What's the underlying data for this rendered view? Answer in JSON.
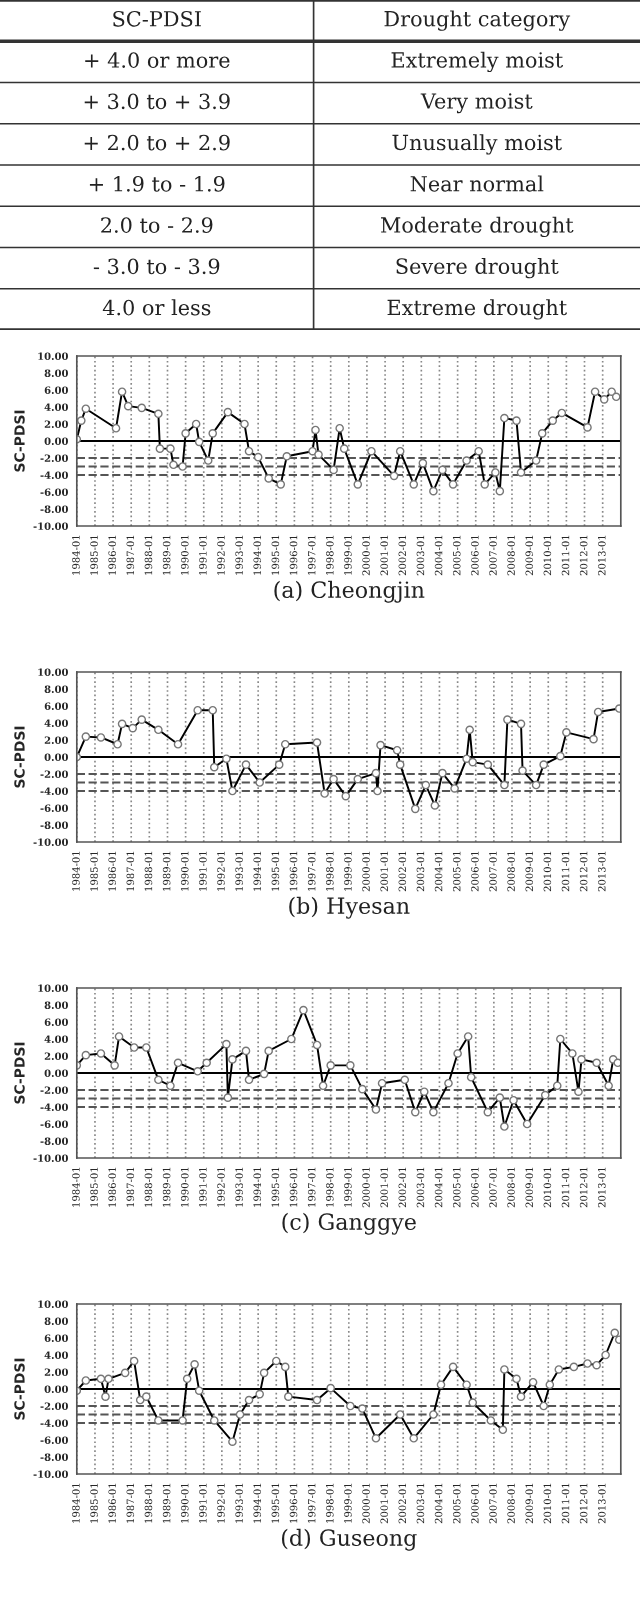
{
  "chart_data": [
    {
      "type": "other",
      "annotations": [
        "SC-PDSI",
        "Drought category",
        "+ 4.0 or more",
        "Extremely moist",
        "+ 3.0 to + 3.9",
        "Very moist",
        "+ 2.0 to + 2.9",
        "Unusually moist",
        "+ 1.9 to - 1.9",
        "Near normal",
        "2.0 to - 2.9",
        "Moderate drought",
        "- 3.0 to - 3.9",
        "Severe drought",
        "4.0 or less",
        "Extreme drought"
      ]
    },
    {
      "type": "line",
      "title": "(a) Cheongjin",
      "ylabel": "SC-PDSI",
      "marker": "circle",
      "grid": "x",
      "xlim": [
        "1984-01",
        "2014-01"
      ],
      "xticks": [
        "1984-01",
        "1985-01",
        "1986-01",
        "1987-01",
        "1988-01",
        "1989-01",
        "1990-01",
        "1991-01",
        "1992-01",
        "1993-01",
        "1994-01",
        "1995-01",
        "1996-01",
        "1997-01",
        "1998-01",
        "1999-01",
        "2000-01",
        "2001-01",
        "2002-01",
        "2003-01",
        "2004-01",
        "2005-01",
        "2006-01",
        "2007-01",
        "2008-01",
        "2009-01",
        "2010-01",
        "2011-01",
        "2012-01",
        "2013-01"
      ],
      "ylim": [
        -10,
        10
      ],
      "yticks": [
        {
          "value": -10,
          "label": "-10.00"
        },
        {
          "value": -8,
          "label": "-8.00"
        },
        {
          "value": -6,
          "label": "-6.00"
        },
        {
          "value": -4,
          "label": "-4.00"
        },
        {
          "value": -2,
          "label": "-2.00"
        },
        {
          "value": 0,
          "label": "0.00"
        },
        {
          "value": 2,
          "label": "2.00"
        },
        {
          "value": 4,
          "label": "4.00"
        },
        {
          "value": 6,
          "label": "6.00"
        },
        {
          "value": 8,
          "label": "8.00"
        },
        {
          "value": 10,
          "label": "10.00"
        }
      ],
      "ref_lines": [
        {
          "axis": "y",
          "value": 0,
          "color": "#000000",
          "line_style": "solid"
        },
        {
          "axis": "y",
          "value": -2,
          "color": "#555555",
          "line_style": "dashed"
        },
        {
          "axis": "y",
          "value": -3,
          "color": "#555555",
          "line_style": "dashed"
        },
        {
          "axis": "y",
          "value": -4,
          "color": "#555555",
          "line_style": "dashed"
        }
      ],
      "series": [
        {
          "color": "#000000",
          "x": [
            "1984-01",
            "1984-04",
            "1984-07",
            "1986-03",
            "1986-07",
            "1986-11",
            "1987-08",
            "1988-07",
            "1988-08",
            "1989-03",
            "1989-05",
            "1989-11",
            "1990-01",
            "1990-08",
            "1990-10",
            "1991-04",
            "1991-07",
            "1992-05",
            "1993-04",
            "1993-07",
            "1994-01",
            "1994-08",
            "1995-04",
            "1995-08",
            "1997-01",
            "1997-03",
            "1997-05",
            "1998-03",
            "1998-07",
            "1998-10",
            "1999-07",
            "2000-04",
            "2001-07",
            "2001-11",
            "2002-08",
            "2003-02",
            "2003-09",
            "2004-03",
            "2004-10",
            "2005-07",
            "2006-03",
            "2006-07",
            "2007-02",
            "2007-05",
            "2007-08",
            "2008-04",
            "2008-07",
            "2009-05",
            "2009-09",
            "2010-04",
            "2010-10",
            "2012-03",
            "2012-08",
            "2013-02",
            "2013-07",
            "2013-10"
          ],
          "values": [
            0.2,
            2.4,
            3.8,
            1.5,
            5.8,
            4.1,
            3.9,
            3.2,
            -0.9,
            -0.9,
            -2.8,
            -3.0,
            0.9,
            2.0,
            -0.1,
            -2.3,
            0.9,
            3.4,
            2.0,
            -1.2,
            -1.9,
            -4.4,
            -5.1,
            -1.8,
            -1.2,
            1.3,
            -1.6,
            -3.4,
            1.5,
            -0.9,
            -5.1,
            -1.2,
            -4.1,
            -1.2,
            -5.1,
            -2.6,
            -5.9,
            -3.4,
            -5.1,
            -2.3,
            -1.2,
            -5.1,
            -3.7,
            -5.9,
            2.7,
            2.4,
            -3.7,
            -2.3,
            0.9,
            2.4,
            3.3,
            1.6,
            5.8,
            4.9,
            5.8,
            5.2
          ]
        }
      ]
    },
    {
      "type": "line",
      "title": "(b) Hyesan",
      "ylabel": "SC-PDSI",
      "marker": "circle",
      "grid": "x",
      "xlim": [
        "1984-01",
        "2014-01"
      ],
      "xticks": [
        "1984-01",
        "1985-01",
        "1986-01",
        "1987-01",
        "1988-01",
        "1989-01",
        "1990-01",
        "1991-01",
        "1992-01",
        "1993-01",
        "1994-01",
        "1995-01",
        "1996-01",
        "1997-01",
        "1998-01",
        "1999-01",
        "2000-01",
        "2001-01",
        "2002-01",
        "2003-01",
        "2004-01",
        "2005-01",
        "2006-01",
        "2007-01",
        "2008-01",
        "2009-01",
        "2010-01",
        "2011-01",
        "2012-01",
        "2013-01"
      ],
      "ylim": [
        -10,
        10
      ],
      "yticks": [
        {
          "value": -10,
          "label": "-10.00"
        },
        {
          "value": -8,
          "label": "-8.00"
        },
        {
          "value": -6,
          "label": "-6.00"
        },
        {
          "value": -4,
          "label": "-4.00"
        },
        {
          "value": -2,
          "label": "-2.00"
        },
        {
          "value": 0,
          "label": "0.00"
        },
        {
          "value": 2,
          "label": "2.00"
        },
        {
          "value": 4,
          "label": "4.00"
        },
        {
          "value": 6,
          "label": "6.00"
        },
        {
          "value": 8,
          "label": "8.00"
        },
        {
          "value": 10,
          "label": "10.00"
        }
      ],
      "ref_lines": [
        {
          "axis": "y",
          "value": 0,
          "color": "#000000",
          "line_style": "solid"
        },
        {
          "axis": "y",
          "value": -2,
          "color": "#555555",
          "line_style": "dashed"
        },
        {
          "axis": "y",
          "value": -3,
          "color": "#555555",
          "line_style": "dashed"
        },
        {
          "axis": "y",
          "value": -4,
          "color": "#555555",
          "line_style": "dashed"
        }
      ],
      "series": [
        {
          "color": "#000000",
          "x": [
            "1984-01",
            "1984-07",
            "1985-05",
            "1986-04",
            "1986-07",
            "1987-02",
            "1987-08",
            "1988-07",
            "1989-08",
            "1990-09",
            "1991-07",
            "1991-08",
            "1992-04",
            "1992-08",
            "1993-05",
            "1994-02",
            "1995-03",
            "1995-07",
            "1997-04",
            "1997-09",
            "1998-03",
            "1998-11",
            "1999-07",
            "2000-07",
            "2000-08",
            "2000-10",
            "2001-09",
            "2001-11",
            "2002-09",
            "2003-04",
            "2003-10",
            "2004-03",
            "2004-11",
            "2005-07",
            "2005-09",
            "2005-11",
            "2006-09",
            "2007-08",
            "2007-10",
            "2008-07",
            "2008-08",
            "2009-05",
            "2009-10",
            "2010-09",
            "2011-01",
            "2012-07",
            "2012-10",
            "2013-12"
          ],
          "values": [
            0.0,
            2.4,
            2.3,
            1.5,
            3.9,
            3.4,
            4.4,
            3.2,
            1.5,
            5.5,
            5.5,
            -1.2,
            -0.2,
            -4.0,
            -0.9,
            -3.0,
            -0.9,
            1.5,
            1.7,
            -4.3,
            -2.6,
            -4.6,
            -2.6,
            -1.9,
            -4.0,
            1.4,
            0.8,
            -0.9,
            -6.1,
            -3.3,
            -5.7,
            -1.9,
            -3.7,
            -0.2,
            3.2,
            -0.6,
            -0.9,
            -3.3,
            4.4,
            3.9,
            -1.6,
            -3.3,
            -0.9,
            0.1,
            2.9,
            2.1,
            5.3,
            5.7
          ]
        }
      ]
    },
    {
      "type": "line",
      "title": "(c) Ganggye",
      "ylabel": "SC-PDSI",
      "marker": "circle",
      "grid": "x",
      "xlim": [
        "1984-01",
        "2014-01"
      ],
      "xticks": [
        "1984-01",
        "1985-01",
        "1986-01",
        "1987-01",
        "1988-01",
        "1989-01",
        "1990-01",
        "1991-01",
        "1992-01",
        "1993-01",
        "1994-01",
        "1995-01",
        "1996-01",
        "1997-01",
        "1998-01",
        "1999-01",
        "2000-01",
        "2001-01",
        "2002-01",
        "2003-01",
        "2004-01",
        "2005-01",
        "2006-01",
        "2007-01",
        "2008-01",
        "2009-01",
        "2010-01",
        "2011-01",
        "2012-01",
        "2013-01"
      ],
      "ylim": [
        -10,
        10
      ],
      "yticks": [
        {
          "value": -10,
          "label": "-10.00"
        },
        {
          "value": -8,
          "label": "-8.00"
        },
        {
          "value": -6,
          "label": "-6.00"
        },
        {
          "value": -4,
          "label": "-4.00"
        },
        {
          "value": -2,
          "label": "-2.00"
        },
        {
          "value": 0,
          "label": "0.00"
        },
        {
          "value": 2,
          "label": "2.00"
        },
        {
          "value": 4,
          "label": "4.00"
        },
        {
          "value": 6,
          "label": "6.00"
        },
        {
          "value": 8,
          "label": "8.00"
        },
        {
          "value": 10,
          "label": "10.00"
        }
      ],
      "ref_lines": [
        {
          "axis": "y",
          "value": 0,
          "color": "#000000",
          "line_style": "solid"
        },
        {
          "axis": "y",
          "value": -2,
          "color": "#555555",
          "line_style": "dashed"
        },
        {
          "axis": "y",
          "value": -3,
          "color": "#555555",
          "line_style": "dashed"
        },
        {
          "axis": "y",
          "value": -4,
          "color": "#555555",
          "line_style": "dashed"
        }
      ],
      "series": [
        {
          "color": "#000000",
          "x": [
            "1984-01",
            "1984-07",
            "1985-05",
            "1986-02",
            "1986-05",
            "1987-03",
            "1987-11",
            "1988-07",
            "1989-03",
            "1989-08",
            "1990-09",
            "1991-03",
            "1992-04",
            "1992-05",
            "1992-08",
            "1993-05",
            "1993-07",
            "1994-05",
            "1994-08",
            "1995-11",
            "1996-07",
            "1997-04",
            "1997-08",
            "1998-01",
            "1999-02",
            "1999-10",
            "2000-07",
            "2000-11",
            "2002-02",
            "2002-09",
            "2003-03",
            "2003-09",
            "2004-07",
            "2005-01",
            "2005-08",
            "2005-10",
            "2006-09",
            "2007-05",
            "2007-08",
            "2008-02",
            "2008-11",
            "2009-11",
            "2010-07",
            "2010-09",
            "2011-05",
            "2011-09",
            "2011-11",
            "2012-09",
            "2013-05",
            "2013-08",
            "2013-11"
          ],
          "values": [
            0.9,
            2.1,
            2.3,
            0.9,
            4.3,
            3.0,
            3.0,
            -0.8,
            -1.5,
            1.2,
            0.2,
            1.2,
            3.4,
            -2.9,
            1.6,
            2.6,
            -0.8,
            -0.1,
            2.6,
            4.0,
            7.4,
            3.3,
            -1.5,
            0.9,
            0.9,
            -1.9,
            -4.3,
            -1.2,
            -0.8,
            -4.6,
            -2.2,
            -4.6,
            -1.2,
            2.3,
            4.3,
            -0.5,
            -4.6,
            -2.9,
            -6.3,
            -3.2,
            -6.0,
            -2.6,
            -1.5,
            4.0,
            2.3,
            -2.2,
            1.6,
            1.2,
            -1.5,
            1.6,
            1.2
          ]
        }
      ]
    },
    {
      "type": "line",
      "title": "(d) Guseong",
      "ylabel": "SC-PDSI",
      "marker": "circle",
      "grid": "x",
      "xlim": [
        "1984-01",
        "2014-01"
      ],
      "xticks": [
        "1984-01",
        "1985-01",
        "1986-01",
        "1987-01",
        "1988-01",
        "1989-01",
        "1990-01",
        "1991-01",
        "1992-01",
        "1993-01",
        "1994-01",
        "1995-01",
        "1996-01",
        "1997-01",
        "1998-01",
        "1999-01",
        "2000-01",
        "2001-01",
        "2002-01",
        "2003-01",
        "2004-01",
        "2005-01",
        "2006-01",
        "2007-01",
        "2008-01",
        "2009-01",
        "2010-01",
        "2011-01",
        "2012-01",
        "2013-01"
      ],
      "ylim": [
        -10,
        10
      ],
      "yticks": [
        {
          "value": -10,
          "label": "-10.00"
        },
        {
          "value": -8,
          "label": "-8.00"
        },
        {
          "value": -6,
          "label": "-6.00"
        },
        {
          "value": -4,
          "label": "-4.00"
        },
        {
          "value": -2,
          "label": "-2.00"
        },
        {
          "value": 0,
          "label": "0.00"
        },
        {
          "value": 2,
          "label": "2.00"
        },
        {
          "value": 4,
          "label": "4.00"
        },
        {
          "value": 6,
          "label": "6.00"
        },
        {
          "value": 8,
          "label": "8.00"
        },
        {
          "value": 10,
          "label": "10.00"
        }
      ],
      "ref_lines": [
        {
          "axis": "y",
          "value": 0,
          "color": "#000000",
          "line_style": "solid"
        },
        {
          "axis": "y",
          "value": -2,
          "color": "#555555",
          "line_style": "dashed"
        },
        {
          "axis": "y",
          "value": -3,
          "color": "#555555",
          "line_style": "dashed"
        },
        {
          "axis": "y",
          "value": -4,
          "color": "#555555",
          "line_style": "dashed"
        }
      ],
      "series": [
        {
          "color": "#000000",
          "x": [
            "1984-01",
            "1984-07",
            "1985-05",
            "1985-08",
            "1985-10",
            "1986-09",
            "1987-03",
            "1987-07",
            "1987-11",
            "1988-07",
            "1989-11",
            "1990-02",
            "1990-07",
            "1990-10",
            "1991-08",
            "1992-08",
            "1993-01",
            "1993-07",
            "1994-02",
            "1994-05",
            "1995-01",
            "1995-07",
            "1995-09",
            "1997-04",
            "1998-01",
            "1999-02",
            "1999-10",
            "2000-07",
            "2001-11",
            "2002-08",
            "2003-09",
            "2004-02",
            "2004-10",
            "2005-07",
            "2005-11",
            "2006-11",
            "2007-07",
            "2007-08",
            "2008-04",
            "2008-07",
            "2009-03",
            "2009-10",
            "2010-02",
            "2010-08",
            "2011-06",
            "2012-03",
            "2012-09",
            "2013-03",
            "2013-09",
            "2013-12"
          ],
          "values": [
            -0.2,
            1.0,
            1.2,
            -0.9,
            1.2,
            1.9,
            3.3,
            -1.3,
            -0.9,
            -3.7,
            -3.7,
            1.2,
            2.9,
            -0.2,
            -3.7,
            -6.2,
            -3.0,
            -1.3,
            -0.6,
            1.9,
            3.3,
            2.6,
            -0.9,
            -1.3,
            0.1,
            -2.0,
            -2.3,
            -5.8,
            -3.0,
            -5.8,
            -3.0,
            0.5,
            2.6,
            0.5,
            -1.6,
            -3.7,
            -4.8,
            2.3,
            1.2,
            -0.9,
            0.8,
            -2.0,
            0.5,
            2.3,
            2.6,
            3.0,
            2.8,
            4.0,
            6.6,
            5.8
          ]
        }
      ]
    }
  ]
}
